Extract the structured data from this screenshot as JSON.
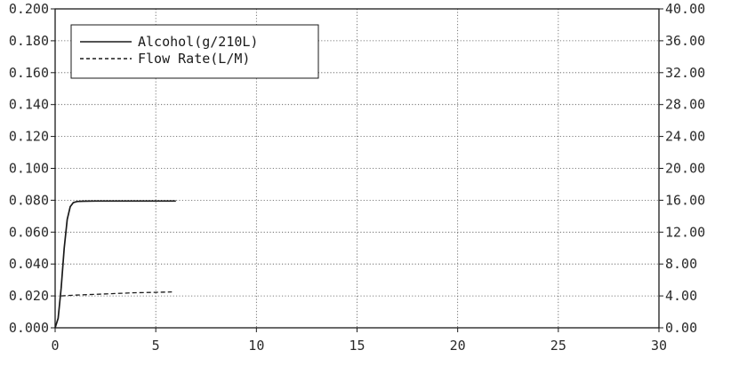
{
  "chart_data": {
    "type": "line",
    "x_ticks": [
      "0",
      "5",
      "10",
      "15",
      "20",
      "25",
      "30"
    ],
    "xlim": [
      0,
      30
    ],
    "y_left_ticks": [
      "0.000",
      "0.020",
      "0.040",
      "0.060",
      "0.080",
      "0.100",
      "0.120",
      "0.140",
      "0.160",
      "0.180",
      "0.200"
    ],
    "y_left_lim": [
      0,
      0.2
    ],
    "y_right_ticks": [
      "0.00",
      "4.00",
      "8.00",
      "12.00",
      "16.00",
      "20.00",
      "24.00",
      "28.00",
      "32.00",
      "36.00",
      "40.00"
    ],
    "y_right_lim": [
      0,
      40
    ],
    "grid": true,
    "legend_position": "top-left",
    "series": [
      {
        "name": "Alcohol(g/210L)",
        "axis": "left",
        "style": "solid",
        "color": "#1a1a1a",
        "x": [
          0,
          0.15,
          0.3,
          0.45,
          0.6,
          0.75,
          0.9,
          1.1,
          1.4,
          2.0,
          3.0,
          4.0,
          5.0,
          6.0
        ],
        "y": [
          0.0,
          0.006,
          0.025,
          0.05,
          0.068,
          0.076,
          0.0785,
          0.0792,
          0.0794,
          0.0795,
          0.0795,
          0.0795,
          0.0795,
          0.0795
        ]
      },
      {
        "name": "Flow Rate(L/M)",
        "axis": "right",
        "style": "dashed",
        "color": "#1a1a1a",
        "x": [
          0.3,
          1.0,
          2.0,
          3.0,
          4.0,
          5.0,
          5.8
        ],
        "y": [
          4.0,
          4.1,
          4.2,
          4.3,
          4.4,
          4.45,
          4.5
        ]
      }
    ]
  }
}
